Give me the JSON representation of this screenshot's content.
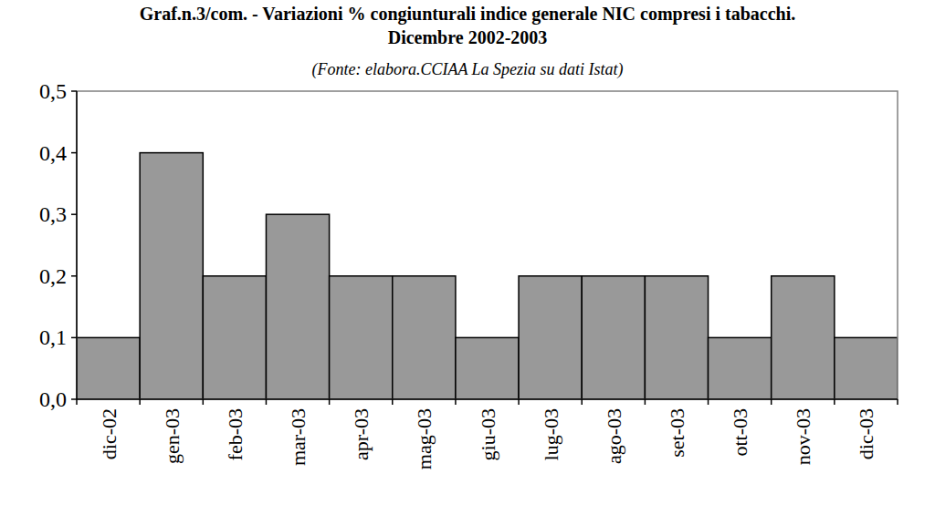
{
  "chart_data": {
    "type": "bar",
    "title": "Graf.n.3/com. - Variazioni % congiunturali indice generale NIC compresi i tabacchi. Dicembre 2002-2003",
    "subtitle": "(Fonte: elabora.CCIAA La Spezia su dati Istat)",
    "categories": [
      "dic-02",
      "gen-03",
      "feb-03",
      "mar-03",
      "apr-03",
      "mag-03",
      "giu-03",
      "lug-03",
      "ago-03",
      "set-03",
      "ott-03",
      "nov-03",
      "dic-03"
    ],
    "values": [
      0.1,
      0.4,
      0.2,
      0.3,
      0.2,
      0.2,
      0.1,
      0.2,
      0.2,
      0.2,
      0.1,
      0.2,
      0.1
    ],
    "color": "#999999",
    "ylim": [
      0,
      0.5
    ],
    "yticks": [
      {
        "value": 0,
        "label": "0,0"
      },
      {
        "value": 0.1,
        "label": "0,1"
      },
      {
        "value": 0.2,
        "label": "0,2"
      },
      {
        "value": 0.3,
        "label": "0,3"
      },
      {
        "value": 0.4,
        "label": "0,4"
      },
      {
        "value": 0.5,
        "label": "0,5"
      }
    ],
    "grid": false
  }
}
